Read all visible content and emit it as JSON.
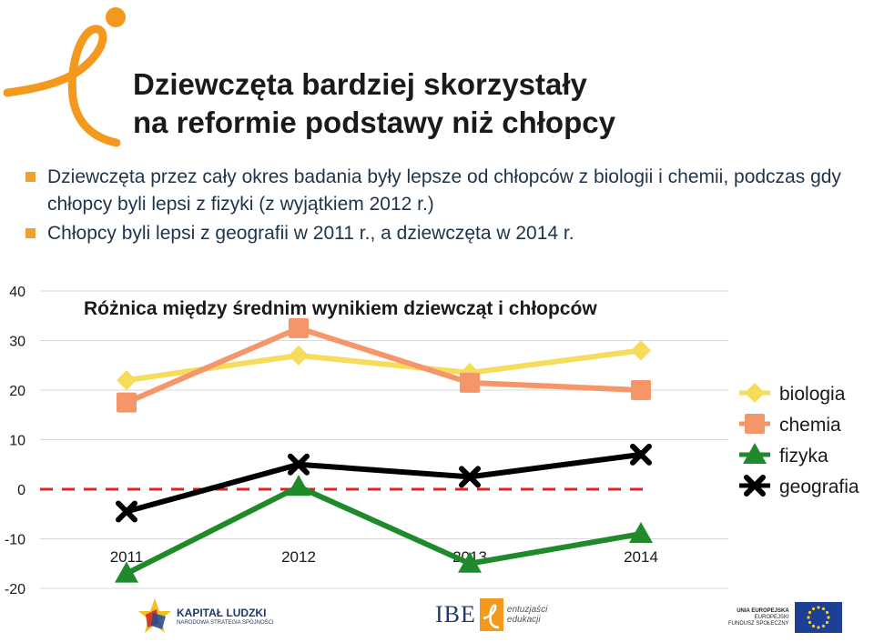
{
  "slide": {
    "title_line1": "Dziewczęta bardziej skorzystały",
    "title_line2": "na reformie podstawy niż chłopcy",
    "bullets": [
      "Dziewczęta przez cały okres badania były lepsze od chłopców z biologii i chemii, podczas gdy chłopcy byli lepsi z fizyki (z wyjątkiem 2012 r.)",
      "Chłopcy byli lepsi z geografii w 2011 r., a dziewczęta w 2014 r."
    ],
    "accent_color": "#f0a030"
  },
  "chart_data": {
    "type": "line",
    "title": "Różnica między średnim wynikiem dziewcząt i chłopców",
    "categories": [
      "2011",
      "2012",
      "2013",
      "2014"
    ],
    "ylim": [
      -20,
      40
    ],
    "yticks": [
      "40",
      "30",
      "20",
      "10",
      "0",
      "-10",
      "-20"
    ],
    "ytick_values": [
      40,
      30,
      20,
      10,
      0,
      -10,
      -20
    ],
    "grid": true,
    "zero_line": {
      "color": "#e02020",
      "style": "dashed"
    },
    "legend_position": "right",
    "series": [
      {
        "name": "biologia",
        "values": [
          22,
          27,
          23.5,
          28
        ],
        "color": "#f5dc5a",
        "marker": "diamond-icon"
      },
      {
        "name": "chemia",
        "values": [
          17.5,
          32.5,
          21.5,
          20
        ],
        "color": "#f5956a",
        "marker": "square-icon"
      },
      {
        "name": "fizyka",
        "values": [
          -17,
          0.5,
          -15,
          -9
        ],
        "color": "#1e8a2a",
        "marker": "triangle-icon"
      },
      {
        "name": "geografia",
        "values": [
          -4.5,
          5,
          2.5,
          7
        ],
        "color": "#000000",
        "marker": "x-icon"
      }
    ]
  },
  "footer": {
    "kapital_ludzki": "KAPITAŁ LUDZKI",
    "kapital_ludzki_sub": "NARODOWA STRATEGIA SPÓJNOŚCI",
    "ibe": "IBE",
    "entuzjasci_line1": "entuzjaści",
    "entuzjasci_line2": "edukacji",
    "ue_line1": "UNIA EUROPEJSKA",
    "ue_line2": "EUROPEJSKI",
    "ue_line3": "FUNDUSZ SPOŁECZNY"
  }
}
